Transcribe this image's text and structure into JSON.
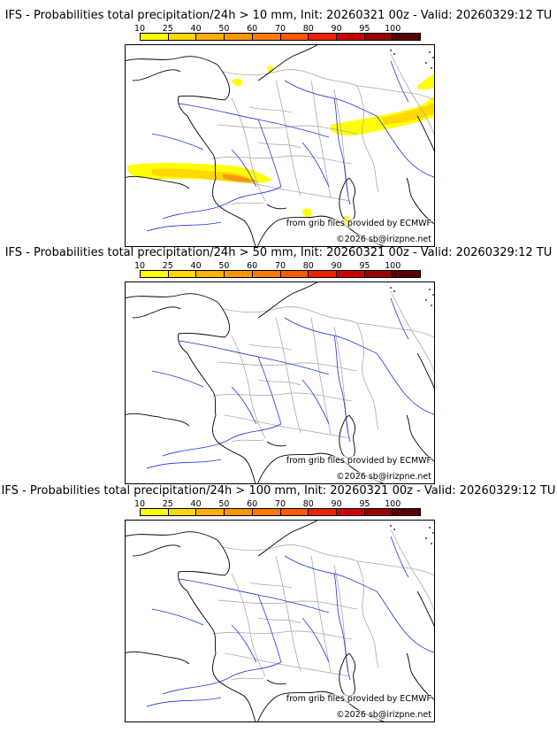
{
  "panels": [
    {
      "title": "IFS - Probabilities total precipitation/24h > 10 mm, Init: 20260321 00z - Valid: 20260329:12 TU",
      "has_precip": true
    },
    {
      "title": "IFS - Probabilities total precipitation/24h > 50 mm, Init: 20260321 00z - Valid: 20260329:12 TU",
      "has_precip": false
    },
    {
      "title": "IFS - Probabilities total precipitation/24h > 100 mm, Init: 20260321 00z - Valid: 20260329:12 TU",
      "has_precip": false
    }
  ],
  "colorbar": {
    "ticks": [
      "10",
      "25",
      "40",
      "50",
      "60",
      "70",
      "80",
      "90",
      "95",
      "100"
    ],
    "colors": [
      "#ffff00",
      "#ffd800",
      "#ffb000",
      "#ff9600",
      "#ff7a00",
      "#ff5a00",
      "#ee2200",
      "#cc0000",
      "#990000",
      "#5a0000"
    ]
  },
  "credits": {
    "source": "from grib files provided by ECMWF",
    "copyright": "©2026 sb@irizpne.net"
  },
  "colors": {
    "coast": "#000000",
    "borders": "#aaaaaa",
    "rivers": "#2233dd"
  }
}
